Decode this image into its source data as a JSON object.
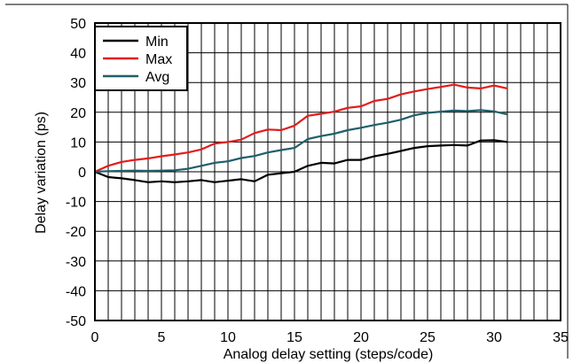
{
  "chart_data": {
    "type": "line",
    "title": "",
    "xlabel": "Analog delay setting (steps/code)",
    "ylabel": "Delay variation (ps)",
    "xlim": [
      0,
      35
    ],
    "ylim": [
      -50,
      50
    ],
    "xticks": [
      "0",
      "5",
      "10",
      "15",
      "20",
      "25",
      "30",
      "35"
    ],
    "yticks": [
      "50",
      "40",
      "30",
      "20",
      "10",
      "0",
      "-10",
      "-20",
      "-30",
      "-40",
      "-50"
    ],
    "grid": true,
    "legend_position": "top-left",
    "x": [
      0,
      1,
      2,
      3,
      4,
      5,
      6,
      7,
      8,
      9,
      10,
      11,
      12,
      13,
      14,
      15,
      16,
      17,
      18,
      19,
      20,
      21,
      22,
      23,
      24,
      25,
      26,
      27,
      28,
      29,
      30,
      31
    ],
    "series": [
      {
        "name": "Min",
        "color": "#000000",
        "values": [
          0,
          -1.8,
          -2.2,
          -2.8,
          -3.5,
          -3.2,
          -3.5,
          -3.2,
          -2.8,
          -3.5,
          -3.0,
          -2.5,
          -3.2,
          -1.0,
          -0.5,
          0,
          2,
          3,
          2.8,
          4,
          4,
          5.2,
          6,
          7,
          8,
          8.6,
          8.8,
          9,
          8.8,
          10.5,
          10.6,
          10
        ]
      },
      {
        "name": "Max",
        "color": "#e31b1b",
        "values": [
          0,
          2,
          3.3,
          4,
          4.5,
          5.2,
          5.8,
          6.5,
          7.5,
          9.5,
          10,
          10.8,
          13,
          14.2,
          14,
          15.5,
          18.8,
          19.5,
          20.2,
          21.5,
          22,
          23.8,
          24.5,
          26,
          27,
          27.8,
          28.5,
          29.3,
          28.3,
          28,
          29,
          28
        ]
      },
      {
        "name": "Avg",
        "color": "#1f5f6b",
        "values": [
          0,
          0.2,
          0.3,
          0.4,
          0.3,
          0.4,
          0.5,
          1,
          2,
          3,
          3.5,
          4.6,
          5.3,
          6.5,
          7.3,
          8,
          11,
          12,
          12.8,
          14,
          14.8,
          15.7,
          16.5,
          17.5,
          19,
          19.8,
          20.2,
          20.6,
          20.4,
          20.7,
          20.3,
          19.3
        ]
      }
    ]
  }
}
